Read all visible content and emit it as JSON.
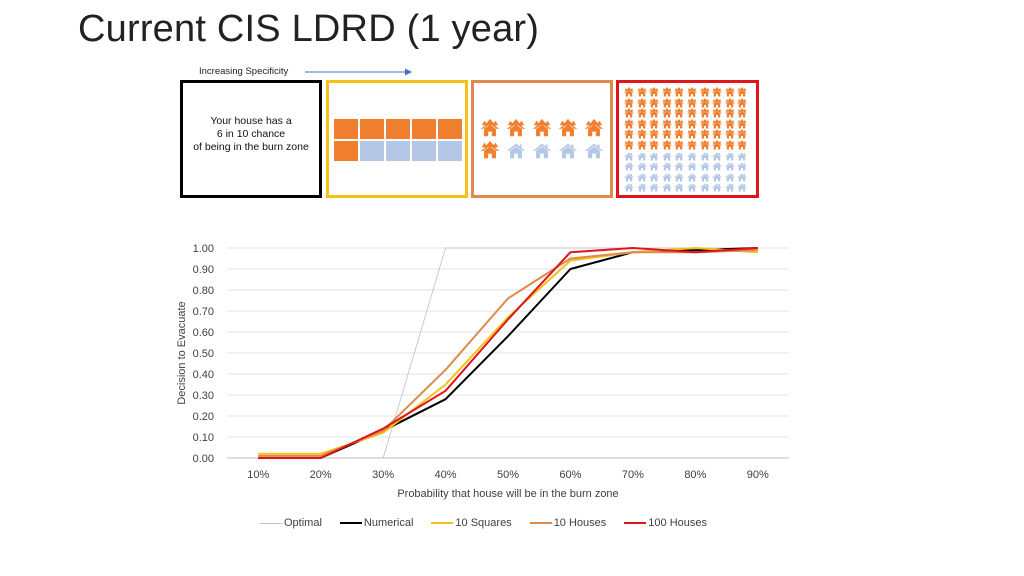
{
  "page": {
    "title": "Current CIS LDRD (1 year)"
  },
  "specificity": {
    "label": "Increasing Specificity",
    "arrow_color": "#4472c4"
  },
  "panels": {
    "text_panel": {
      "lines": [
        "Your house has a",
        "6 in 10 chance",
        "of being in the burn zone"
      ],
      "border_color": "#000000"
    },
    "squares_panel": {
      "count": 10,
      "filled": 6,
      "border_color": "#f2c21a",
      "filled_color": "#f08030",
      "empty_color": "#b4c8e6"
    },
    "houses_panel": {
      "count": 10,
      "burning": 6,
      "border_color": "#de8a4b",
      "burning_icon": "burning-house-icon",
      "safe_icon": "house-icon"
    },
    "houses100_panel": {
      "count": 100,
      "burning": 60,
      "border_color": "#e0141c",
      "burning_icon": "burning-house-icon",
      "safe_icon": "house-icon"
    }
  },
  "chart_data": {
    "type": "line",
    "xlabel": "Probability that house will be in the burn zone",
    "ylabel": "Decision to Evacuate",
    "categories": [
      "10%",
      "20%",
      "30%",
      "40%",
      "50%",
      "60%",
      "70%",
      "80%",
      "90%"
    ],
    "x": [
      0.1,
      0.2,
      0.3,
      0.4,
      0.5,
      0.6,
      0.7,
      0.8,
      0.9
    ],
    "y_ticks": [
      "0.00",
      "0.10",
      "0.20",
      "0.30",
      "0.40",
      "0.50",
      "0.60",
      "0.70",
      "0.80",
      "0.90",
      "1.00"
    ],
    "ylim": [
      0,
      1
    ],
    "grid": true,
    "legend_position": "bottom",
    "series": [
      {
        "name": "Optimal",
        "color": "#bfbfbf",
        "width": 0.8,
        "points": [
          [
            0.3,
            0.0
          ],
          [
            0.4,
            1.0
          ],
          [
            0.9,
            1.0
          ]
        ]
      },
      {
        "name": "Numerical",
        "color": "#000000",
        "width": 2,
        "values": [
          0.0,
          0.0,
          0.13,
          0.28,
          0.58,
          0.9,
          0.98,
          0.99,
          1.0
        ]
      },
      {
        "name": "10 Squares",
        "color": "#f2c21a",
        "width": 2,
        "values": [
          0.02,
          0.02,
          0.12,
          0.35,
          0.67,
          0.94,
          0.98,
          1.0,
          0.98
        ]
      },
      {
        "name": "10 Houses",
        "color": "#de8a4b",
        "width": 2,
        "values": [
          0.01,
          0.01,
          0.13,
          0.42,
          0.76,
          0.95,
          0.98,
          0.98,
          0.99
        ]
      },
      {
        "name": "100 Houses",
        "color": "#e0141c",
        "width": 2,
        "values": [
          0.0,
          0.0,
          0.14,
          0.32,
          0.66,
          0.98,
          1.0,
          0.98,
          1.0
        ]
      }
    ]
  }
}
